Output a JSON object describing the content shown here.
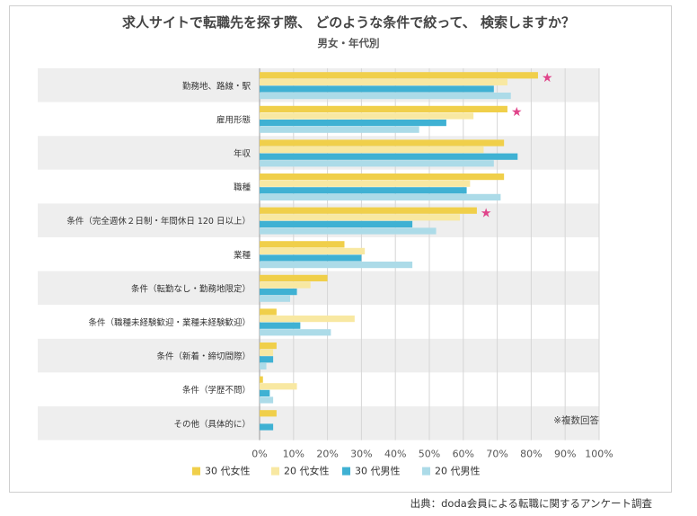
{
  "header": {
    "title": "求人サイトで転職先を探す際、 どのような条件で絞って、 検索しますか？",
    "subtitle": "男女・年代別"
  },
  "footer": {
    "source": "出典：doda会員による転職に関するアンケート調査"
  },
  "chart_data": {
    "type": "bar",
    "orientation": "horizontal",
    "categories": [
      "勤務地、路線・駅",
      "雇用形態",
      "年収",
      "職種",
      "条件（完全週休２日制・年間休日 120 日以上）",
      "業種",
      "条件（転勤なし・勤務地限定）",
      "条件（職種未経験歓迎・業種未経験歓迎）",
      "条件（新着・締切間際）",
      "条件（学歴不問）",
      "その他（具体的に）"
    ],
    "series": [
      {
        "name": "30 代女性",
        "color": "#f0cf4a",
        "values": [
          82,
          73,
          72,
          72,
          64,
          25,
          20,
          5,
          5,
          1,
          5
        ]
      },
      {
        "name": "20 代女性",
        "color": "#f8e8a2",
        "values": [
          73,
          63,
          66,
          62,
          59,
          31,
          15,
          28,
          4,
          11,
          0
        ]
      },
      {
        "name": "30 代男性",
        "color": "#3fb1d3",
        "values": [
          69,
          55,
          76,
          61,
          45,
          30,
          11,
          12,
          4,
          3,
          4
        ]
      },
      {
        "name": "20 代男性",
        "color": "#acdbe8",
        "values": [
          74,
          47,
          69,
          71,
          52,
          45,
          9,
          21,
          2,
          4,
          0
        ]
      }
    ],
    "star_categories": [
      0,
      1,
      4
    ],
    "star_glyph": "★",
    "xlim": [
      0,
      100
    ],
    "x_ticks": [
      "0%",
      "10%",
      "20%",
      "30%",
      "40%",
      "50%",
      "60%",
      "70%",
      "80%",
      "90%",
      "100%"
    ],
    "note": "※複数回答",
    "legend_position": "bottom",
    "grid": true,
    "band_colors": [
      "#eeeeee",
      "#ffffff"
    ]
  }
}
